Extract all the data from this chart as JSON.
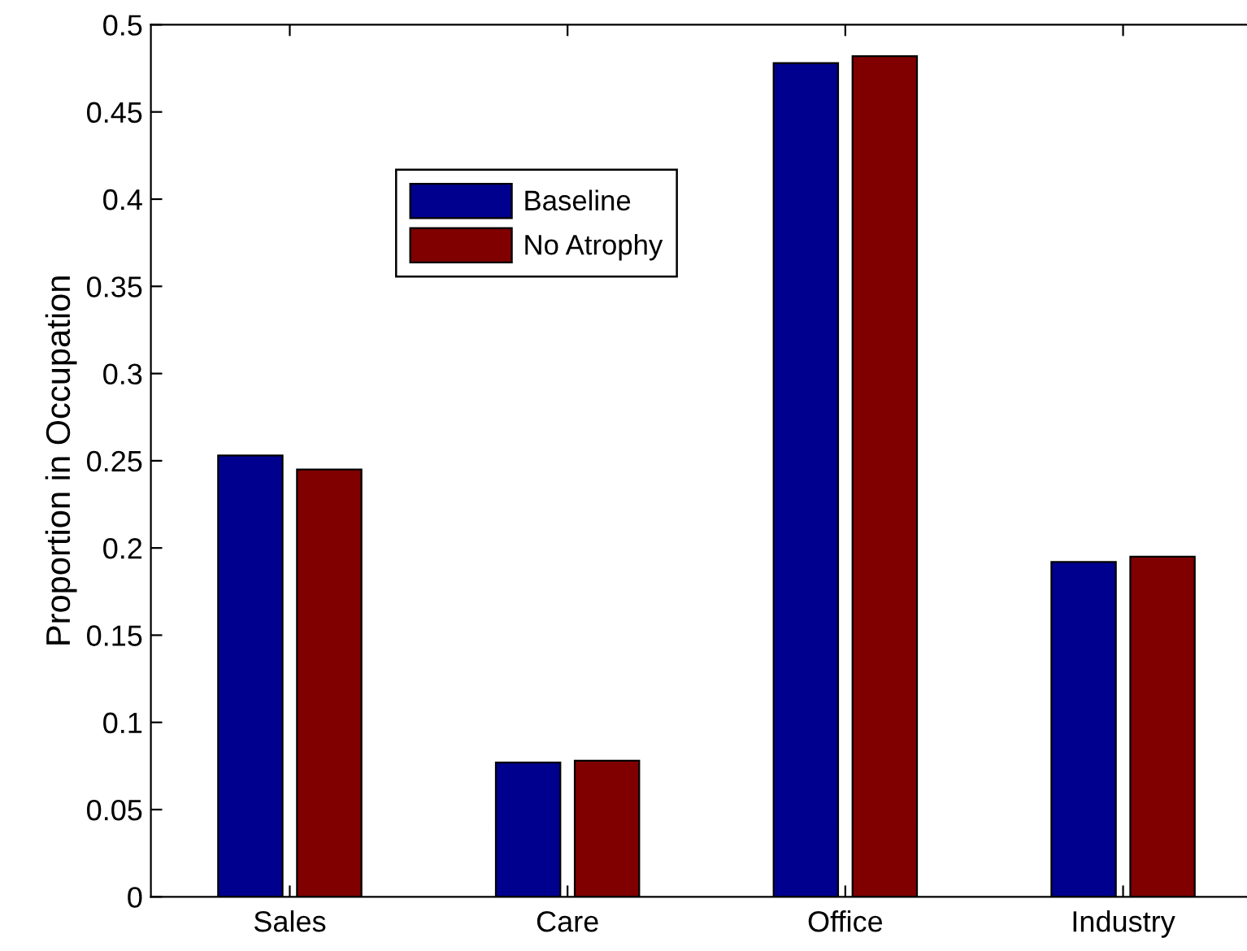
{
  "chart_data": {
    "type": "bar",
    "ylabel": "Proportion in Occupation",
    "categories": [
      "Sales",
      "Care",
      "Office",
      "Industry"
    ],
    "series": [
      {
        "name": "Baseline",
        "color": "#00008f",
        "values": [
          0.253,
          0.077,
          0.478,
          0.192
        ]
      },
      {
        "name": "No Atrophy",
        "color": "#800000",
        "values": [
          0.245,
          0.078,
          0.482,
          0.195
        ]
      }
    ],
    "ylim": [
      0,
      0.5
    ],
    "yticks": [
      0,
      0.05,
      0.1,
      0.15,
      0.2,
      0.25,
      0.3,
      0.35,
      0.4,
      0.45,
      0.5
    ],
    "legend": "top left"
  }
}
